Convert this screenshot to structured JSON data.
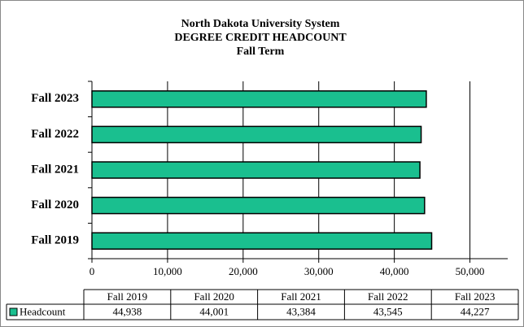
{
  "chart_data": {
    "type": "bar",
    "orientation": "horizontal",
    "title": [
      "North Dakota University System",
      "DEGREE CREDIT HEADCOUNT",
      "Fall Term"
    ],
    "categories": [
      "Fall 2019",
      "Fall 2020",
      "Fall 2021",
      "Fall 2022",
      "Fall 2023"
    ],
    "series": [
      {
        "name": "Headcount",
        "color": "#1abf8f",
        "values": [
          44938,
          44001,
          43384,
          43545,
          44227
        ],
        "value_labels": [
          "44,938",
          "44,001",
          "43,384",
          "43,545",
          "44,227"
        ]
      }
    ],
    "xlim": [
      0,
      55000
    ],
    "xticks": [
      0,
      {
        "value": 10000,
        "label": "10,000"
      },
      {
        "value": 20000,
        "label": "20,000"
      },
      {
        "value": 30000,
        "label": "30,000"
      },
      {
        "value": 40000,
        "label": "40,000"
      },
      {
        "value": 50000,
        "label": "50,000"
      }
    ],
    "grid": true,
    "data_table": true
  }
}
